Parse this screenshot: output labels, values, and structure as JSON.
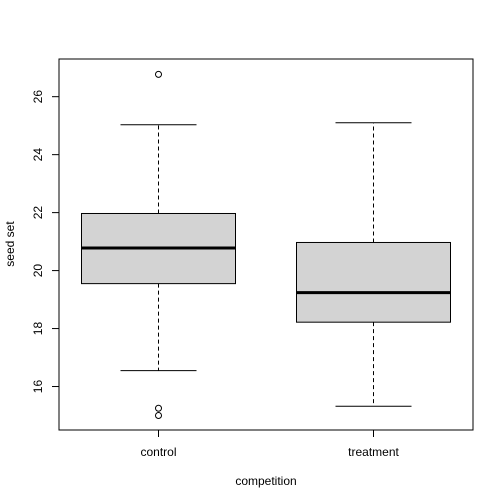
{
  "chart_data": {
    "type": "boxplot",
    "title": "",
    "xlabel": "competition",
    "ylabel": "seed set",
    "ylim": [
      14.5,
      27.3
    ],
    "yticks": [
      16,
      18,
      20,
      22,
      24,
      26
    ],
    "ytick_labels": [
      "16",
      "18",
      "20",
      "22",
      "24",
      "26"
    ],
    "grid": false,
    "legend": "none",
    "box_fill": "#d3d3d3",
    "categories": [
      "control",
      "treatment"
    ],
    "boxes": [
      {
        "name": "control",
        "whisker_low": 16.55,
        "q1": 19.55,
        "median": 20.78,
        "q3": 21.97,
        "whisker_high": 25.03,
        "outliers": [
          26.77,
          15.25,
          15.0
        ]
      },
      {
        "name": "treatment",
        "whisker_low": 15.32,
        "q1": 18.22,
        "median": 19.24,
        "q3": 20.97,
        "whisker_high": 25.1,
        "outliers": []
      }
    ]
  }
}
